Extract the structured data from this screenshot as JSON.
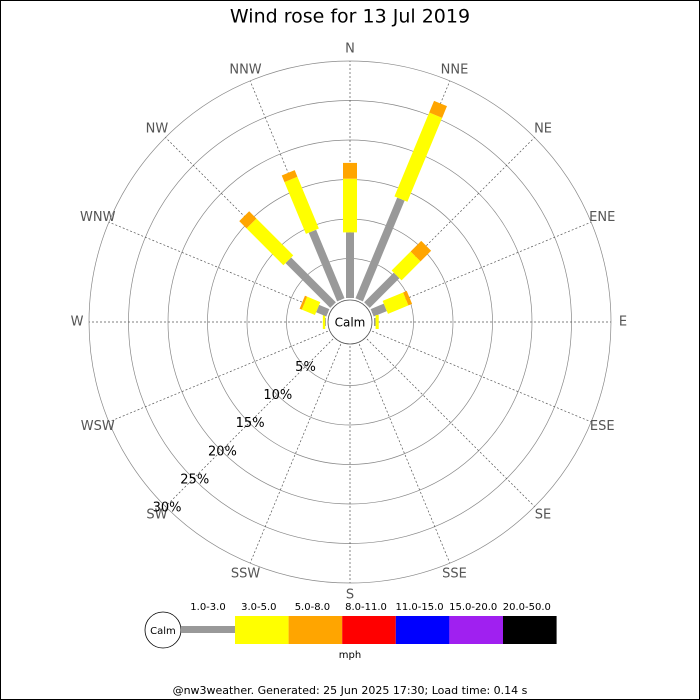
{
  "chart_data": {
    "type": "windrose",
    "title": "Wind rose for 13 Jul 2019",
    "directions": [
      "N",
      "NNE",
      "NE",
      "ENE",
      "E",
      "ESE",
      "SE",
      "SSE",
      "S",
      "SSW",
      "SW",
      "WSW",
      "W",
      "WNW",
      "NW",
      "NNW"
    ],
    "calm_label": "Calm",
    "series": [
      {
        "name": "1.0-3.0",
        "color": "#999999",
        "values": [
          8.3,
          13.8,
          5.3,
          1.8,
          0.2,
          0,
          0,
          0,
          0,
          0,
          0,
          0,
          0.1,
          1.4,
          8.0,
          9.4
        ]
      },
      {
        "name": "3.0-5.0",
        "color": "#ffff00",
        "values": [
          6.8,
          11.5,
          3.4,
          2.8,
          0.4,
          0,
          0,
          0,
          0,
          0,
          0,
          0,
          0.3,
          1.8,
          6.6,
          7.1
        ]
      },
      {
        "name": "5.0-8.0",
        "color": "#ffa500",
        "values": [
          2.0,
          1.6,
          1.9,
          0.5,
          0,
          0,
          0,
          0,
          0,
          0,
          0,
          0,
          0,
          0.3,
          1.3,
          0.9
        ]
      },
      {
        "name": "8.0-11.0",
        "color": "#ff0000",
        "values": [
          0,
          0,
          0,
          0,
          0,
          0,
          0,
          0,
          0,
          0,
          0,
          0,
          0,
          0,
          0,
          0
        ]
      },
      {
        "name": "11.0-15.0",
        "color": "#0000ff",
        "values": [
          0,
          0,
          0,
          0,
          0,
          0,
          0,
          0,
          0,
          0,
          0,
          0,
          0,
          0,
          0,
          0
        ]
      },
      {
        "name": "15.0-20.0",
        "color": "#a020f0",
        "values": [
          0,
          0,
          0,
          0,
          0,
          0,
          0,
          0,
          0,
          0,
          0,
          0,
          0,
          0,
          0,
          0
        ]
      },
      {
        "name": "20.0-50.0",
        "color": "#000000",
        "values": [
          0,
          0,
          0,
          0,
          0,
          0,
          0,
          0,
          0,
          0,
          0,
          0,
          0,
          0,
          0,
          0
        ]
      }
    ],
    "rlim": [
      0,
      30
    ],
    "rticks": [
      {
        "value": 5,
        "label": "5%"
      },
      {
        "value": 10,
        "label": "10%"
      },
      {
        "value": 15,
        "label": "15%"
      },
      {
        "value": 20,
        "label": "20%"
      },
      {
        "value": 25,
        "label": "25%"
      },
      {
        "value": 30,
        "label": "30%"
      }
    ],
    "legend_unit": "mph",
    "footer": "@nw3weather. Generated: 25 Jun 2025 17:30; Load time: 0.14 s"
  }
}
